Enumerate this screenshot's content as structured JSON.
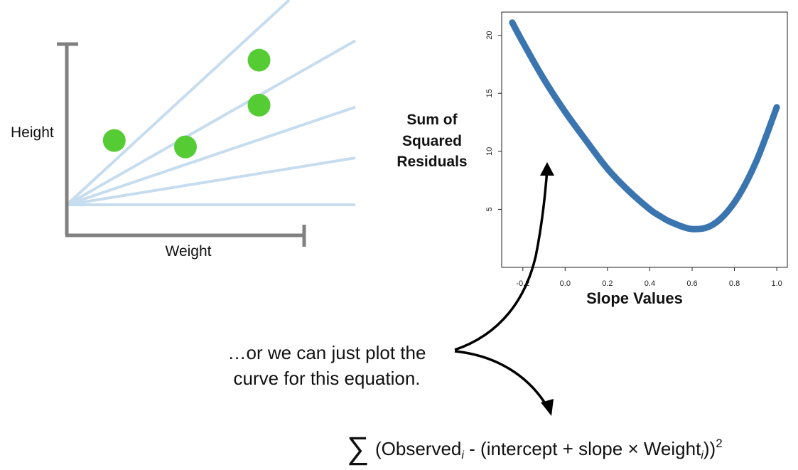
{
  "chart_data": [
    {
      "type": "scatter",
      "xlabel": "Weight",
      "ylabel": "Height",
      "points": [
        {
          "x": 0.2,
          "y": 0.4
        },
        {
          "x": 0.5,
          "y": 0.36
        },
        {
          "x": 0.81,
          "y": 0.62
        },
        {
          "x": 0.81,
          "y": 0.9
        }
      ],
      "candidate_line_slopes": [
        1.36,
        0.84,
        0.5,
        0.24,
        0.0
      ],
      "point_color": "#55cc33",
      "line_color": "#c6dcef",
      "axis_color": "#808080"
    },
    {
      "type": "line",
      "xlabel": "Slope Values",
      "ylabel": "Sum of Squared Residuals",
      "ylabel_lines": [
        "Sum of",
        "Squared",
        "Residuals"
      ],
      "xlim": [
        -0.3,
        1.05
      ],
      "ylim": [
        0,
        22
      ],
      "xticks": [
        -0.2,
        0.0,
        0.2,
        0.4,
        0.6,
        0.8,
        1.0
      ],
      "xtick_labels": [
        "-0.2",
        "0.0",
        "0.2",
        "0.4",
        "0.6",
        "0.8",
        "1.0"
      ],
      "yticks": [
        5,
        10,
        15,
        20
      ],
      "ytick_labels": [
        "5",
        "10",
        "15",
        "20"
      ],
      "series": [
        {
          "x": [
            -0.25,
            -0.2,
            -0.1,
            0.0,
            0.1,
            0.2,
            0.3,
            0.4,
            0.45,
            0.5,
            0.6,
            0.7,
            0.8,
            0.9,
            1.0
          ],
          "y": [
            21.1,
            19.4,
            16.2,
            13.4,
            10.9,
            8.5,
            6.6,
            5.0,
            4.4,
            3.9,
            3.3,
            3.7,
            5.6,
            9.0,
            13.8
          ]
        }
      ],
      "grid": false,
      "curve_color": "#3a75b0"
    }
  ],
  "annotation": {
    "lines": [
      "…or we can just plot the",
      "curve for this equation."
    ]
  },
  "equation": {
    "sigma": "∑",
    "part1": "(Observed",
    "sub1": "i",
    "part2": " - (intercept + slope × Weight",
    "sub2": "i",
    "part3": "))",
    "sup": "2"
  }
}
